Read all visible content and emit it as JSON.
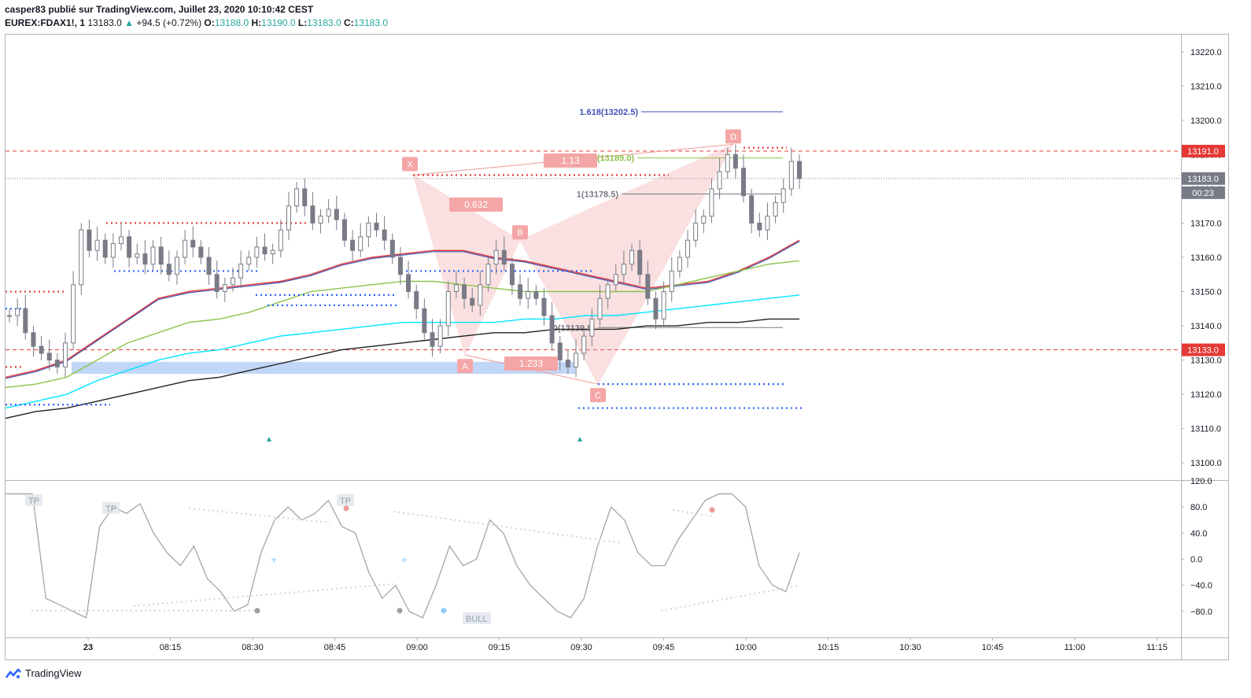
{
  "header": {
    "published": "casper83 publié sur TradingView.com, Juillet 23, 2020 10:10:42 CEST",
    "symbol": "EUREX:FDAX1!, 1",
    "last": "13183.0",
    "change": "+94.5 (+0.72%)",
    "o_label": "O:",
    "o_val": "13188.0",
    "h_label": "H:",
    "h_val": "13190.0",
    "l_label": "L:",
    "l_val": "13183.0",
    "c_label": "C:",
    "c_val": "13183.0"
  },
  "brand": "TradingView",
  "colors": {
    "candle": "#787b86",
    "ema_red": "#e53935",
    "ema_blue": "#3f51b5",
    "ema_green": "#8bc34a",
    "ema_cyan": "#00e5ff",
    "ema_black": "#212121",
    "pattern": "#ef9a9a",
    "support_blue": "#2962ff",
    "resist_red": "#e53935",
    "osc": "#9e9e9e"
  },
  "chart_data": [
    {
      "type": "candlestick",
      "ylim": [
        13095,
        13225
      ],
      "y_ticks": [
        "13220.0",
        "13210.0",
        "13200.0",
        "13190.0",
        "13180.0",
        "13170.0",
        "13160.0",
        "13150.0",
        "13140.0",
        "13130.0",
        "13120.0",
        "13110.0",
        "13100.0"
      ],
      "x_ticks": [
        "23",
        "08:15",
        "08:30",
        "08:45",
        "09:00",
        "09:15",
        "09:30",
        "09:45",
        "10:00",
        "10:15",
        "10:30",
        "10:45",
        "11:00",
        "11:15"
      ],
      "price_labels": [
        {
          "text": "13191.0",
          "value": 13191.0,
          "color": "#e53935"
        },
        {
          "text": "13183.0",
          "value": 13183.0,
          "color": "#787b86"
        },
        {
          "text": "00:23",
          "value": 13179.0,
          "color": "#787b86"
        },
        {
          "text": "13133.0",
          "value": 13133.0,
          "color": "#e53935"
        }
      ],
      "horizontal_lines": [
        {
          "value": 13191.0,
          "style": "dashed",
          "color": "#e53935"
        },
        {
          "value": 13133.0,
          "style": "dashed",
          "color": "#e53935"
        },
        {
          "value": 13183.0,
          "style": "dotted",
          "color": "#787b86"
        }
      ],
      "harmonic_pattern": {
        "points": [
          {
            "label": "X",
            "value": 13184.0
          },
          {
            "label": "A",
            "value": 13131.5
          },
          {
            "label": "B",
            "value": 13165.0
          },
          {
            "label": "C",
            "value": 13123.0
          },
          {
            "label": "D",
            "value": 13193.0
          }
        ],
        "ratios": [
          "0.632",
          "1.233",
          "1.13"
        ]
      },
      "fib_levels": [
        {
          "text": "1.618(13202.5)",
          "value": 13202.5,
          "color": "#3f51b5"
        },
        {
          "text": "1.272(13189.0)",
          "value": 13189.0,
          "color": "#8bc34a"
        },
        {
          "text": "1(13178.5)",
          "value": 13178.5,
          "color": "#787b86"
        },
        {
          "text": "0(13139.5)",
          "value": 13139.5,
          "color": "#787b86"
        }
      ],
      "candles": [
        13143,
        13145,
        13138,
        13134,
        13132,
        13130,
        13128,
        13135,
        13152,
        13168,
        13162,
        13165,
        13160,
        13164,
        13166,
        13160,
        13161,
        13158,
        13163,
        13158,
        13155,
        13160,
        13165,
        13163,
        13160,
        13155,
        13150,
        13152,
        13154,
        13158,
        13160,
        13163,
        13161,
        13162,
        13168,
        13175,
        13180,
        13175,
        13170,
        13172,
        13174,
        13171,
        13165,
        13162,
        13166,
        13170,
        13168,
        13165,
        13160,
        13155,
        13150,
        13145,
        13138,
        13134,
        13140,
        13150,
        13152,
        13148,
        13146,
        13152,
        13158,
        13162,
        13158,
        13152,
        13148,
        13150,
        13148,
        13143,
        13135,
        13130,
        13128,
        13132,
        13137,
        13142,
        13148,
        13152,
        13155,
        13158,
        13162,
        13155,
        13148,
        13142,
        13150,
        13156,
        13160,
        13165,
        13170,
        13172,
        13180,
        13185,
        13190,
        13186,
        13178,
        13170,
        13168,
        13172,
        13176,
        13180,
        13188,
        13183
      ],
      "series": [
        {
          "name": "EMA rouge",
          "values": [
            13125,
            13127,
            13130,
            13136,
            13142,
            13148,
            13150,
            13151,
            13152,
            13153,
            13155,
            13158,
            13160,
            13161,
            13162,
            13162,
            13160,
            13159,
            13157,
            13155,
            13153,
            13151,
            13152,
            13153,
            13156,
            13160,
            13165
          ]
        },
        {
          "name": "EMA verte",
          "values": [
            13122,
            13123,
            13125,
            13130,
            13135,
            13138,
            13141,
            13142,
            13144,
            13147,
            13150,
            13151,
            13152,
            13153,
            13153,
            13152,
            13151,
            13150,
            13150,
            13150,
            13150,
            13150,
            13152,
            13154,
            13156,
            13158,
            13159
          ]
        },
        {
          "name": "EMA cyan",
          "values": [
            13116,
            13118,
            13120,
            13124,
            13127,
            13130,
            13132,
            13133,
            13135,
            13137,
            13138,
            13139,
            13140,
            13141,
            13141,
            13141,
            13141,
            13142,
            13142,
            13143,
            13143,
            13144,
            13145,
            13146,
            13147,
            13148,
            13149
          ]
        },
        {
          "name": "EMA noire",
          "values": [
            13113,
            13115,
            13116,
            13118,
            13120,
            13122,
            13124,
            13125,
            13127,
            13129,
            13131,
            13133,
            13134,
            13135,
            13136,
            13137,
            13138,
            13138,
            13139,
            13139,
            13139,
            13140,
            13140,
            13141,
            13141,
            13142,
            13142
          ]
        }
      ]
    },
    {
      "type": "line",
      "ylim": [
        -120,
        120
      ],
      "y_ticks": [
        "120.0",
        "80.0",
        "40.0",
        "0.0",
        "−40.0",
        "−80.0"
      ],
      "annotations": [
        "TP",
        "TP",
        "TP",
        "BULL"
      ],
      "values": [
        100,
        100,
        100,
        -60,
        -70,
        -80,
        -90,
        50,
        80,
        70,
        85,
        40,
        10,
        -10,
        20,
        -30,
        -50,
        -80,
        -70,
        10,
        60,
        80,
        60,
        70,
        90,
        50,
        40,
        -20,
        -60,
        -40,
        -80,
        -90,
        -40,
        20,
        -10,
        0,
        60,
        40,
        -10,
        -40,
        -60,
        -80,
        -90,
        -60,
        20,
        80,
        60,
        10,
        -10,
        -10,
        30,
        60,
        90,
        100,
        100,
        80,
        -10,
        -40,
        -50,
        10
      ]
    }
  ]
}
